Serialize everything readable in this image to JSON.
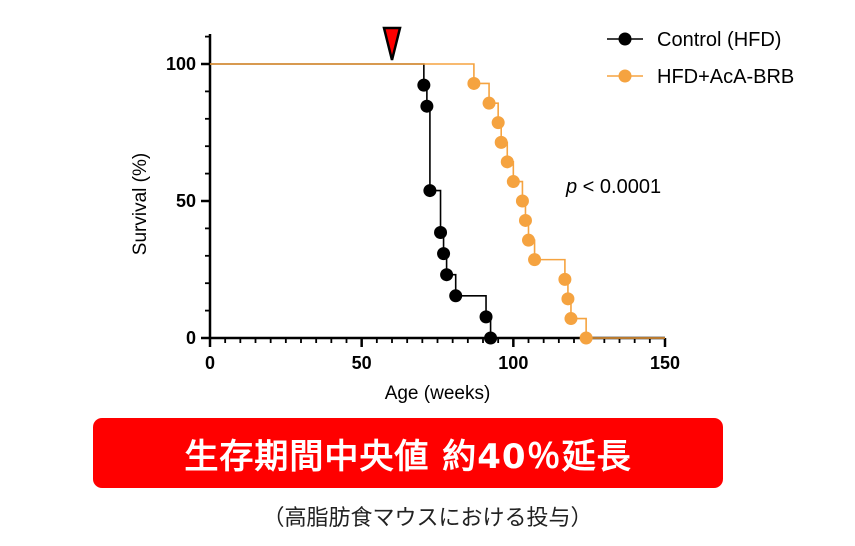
{
  "chart_data": {
    "type": "line",
    "subtype": "kaplan-meier-step",
    "xlabel": "Age (weeks)",
    "ylabel": "Survival (%)",
    "xlim": [
      0,
      150
    ],
    "ylim": [
      0,
      100
    ],
    "xticks": [
      0,
      50,
      100,
      150
    ],
    "yticks": [
      0,
      50,
      100
    ],
    "grid": false,
    "legend_position": "top-right",
    "annotation_text": {
      "p_italic": "p",
      "rest": " < 0.0001"
    },
    "marker_x": 60,
    "marker_color": "#ff0000",
    "series": [
      {
        "name": "Control (HFD)",
        "color": "#000000",
        "events": [
          {
            "x": 70.5,
            "y": 92.3
          },
          {
            "x": 71.5,
            "y": 84.6
          },
          {
            "x": 72.5,
            "y": 53.8
          },
          {
            "x": 76.0,
            "y": 38.5
          },
          {
            "x": 77.0,
            "y": 30.8
          },
          {
            "x": 78.0,
            "y": 23.1
          },
          {
            "x": 81.0,
            "y": 15.4
          },
          {
            "x": 91.0,
            "y": 7.7
          },
          {
            "x": 92.5,
            "y": 0
          }
        ]
      },
      {
        "name": "HFD+AcA-BRB",
        "color": "#f5a340",
        "events": [
          {
            "x": 87.0,
            "y": 92.9
          },
          {
            "x": 92.0,
            "y": 85.7
          },
          {
            "x": 95.0,
            "y": 78.6
          },
          {
            "x": 96.0,
            "y": 71.4
          },
          {
            "x": 98.0,
            "y": 64.3
          },
          {
            "x": 100.0,
            "y": 57.1
          },
          {
            "x": 103.0,
            "y": 50.0
          },
          {
            "x": 104.0,
            "y": 42.9
          },
          {
            "x": 105.0,
            "y": 35.7
          },
          {
            "x": 107.0,
            "y": 28.6
          },
          {
            "x": 117.0,
            "y": 21.4
          },
          {
            "x": 118.0,
            "y": 14.3
          },
          {
            "x": 119.0,
            "y": 7.1
          },
          {
            "x": 124.0,
            "y": 0
          }
        ]
      }
    ]
  },
  "banner_text": "生存期間中央値 約40％延長",
  "caption_text": "（高脂肪食マウスにおける投与）"
}
